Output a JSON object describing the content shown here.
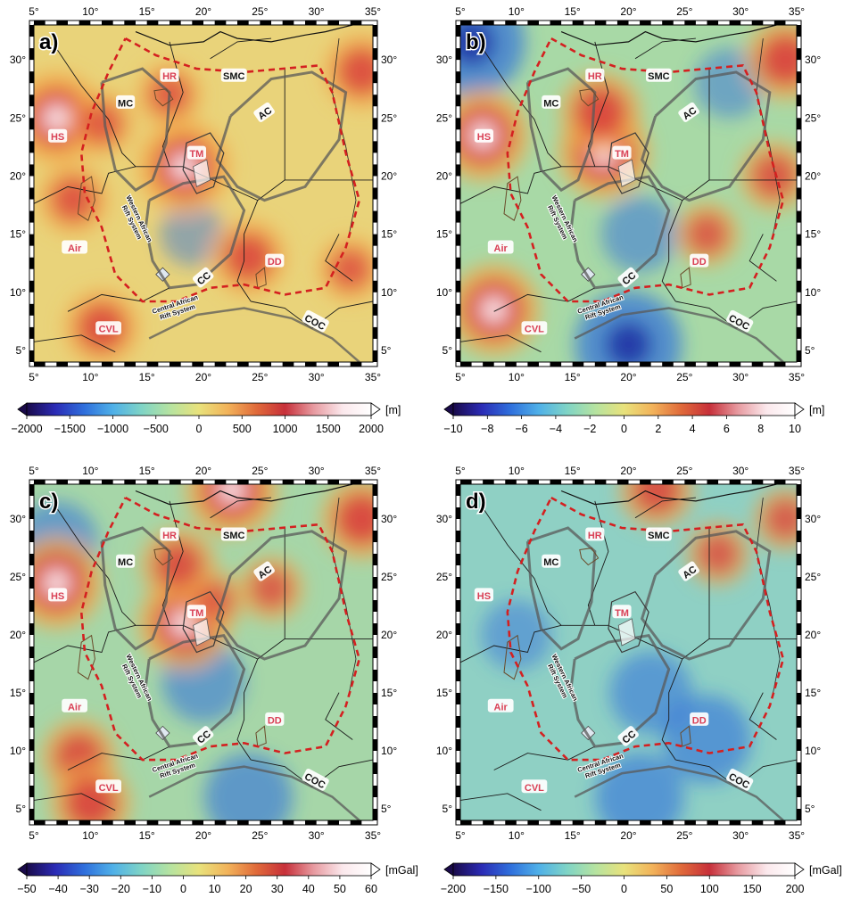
{
  "lon_ticks": [
    "5°",
    "10°",
    "15°",
    "20°",
    "25°",
    "30°",
    "35°"
  ],
  "lat_ticks": [
    "5°",
    "10°",
    "15°",
    "20°",
    "25°",
    "30°"
  ],
  "map_extent": {
    "lon": [
      5,
      35
    ],
    "lat": [
      4,
      33
    ]
  },
  "panels": [
    {
      "id": "a",
      "label": "a)",
      "unit": "[m]",
      "colorbar_ticks": [
        "−2000",
        "−1500",
        "−1000",
        "−500",
        "0",
        "500",
        "1000",
        "1500",
        "2000"
      ],
      "base_color": "#e9d37a",
      "highs": [
        {
          "lon": 7,
          "lat": 25,
          "strength": 1.0
        },
        {
          "lon": 18.3,
          "lat": 20.8,
          "strength": 1.0
        },
        {
          "lon": 11,
          "lat": 24.5,
          "strength": 0.5
        },
        {
          "lon": 8.5,
          "lat": 18,
          "strength": 0.6
        },
        {
          "lon": 17,
          "lat": 27,
          "strength": 0.5
        },
        {
          "lon": 24,
          "lat": 13,
          "strength": 0.7
        },
        {
          "lon": 11,
          "lat": 7,
          "strength": 0.7
        },
        {
          "lon": 34,
          "lat": 29,
          "strength": 0.7
        },
        {
          "lon": 33,
          "lat": 12,
          "strength": 0.5
        }
      ],
      "lows": [
        {
          "lon": 19,
          "lat": 15,
          "strength": 0.3
        }
      ]
    },
    {
      "id": "b",
      "label": "b)",
      "unit": "[m]",
      "colorbar_ticks": [
        "−10",
        "−8",
        "−6",
        "−4",
        "−2",
        "0",
        "2",
        "4",
        "6",
        "8",
        "10"
      ],
      "base_color": "#a8d9a6",
      "highs": [
        {
          "lon": 7,
          "lat": 23.5,
          "strength": 1.0
        },
        {
          "lon": 17.8,
          "lat": 22,
          "strength": 1.0
        },
        {
          "lon": 17.5,
          "lat": 25.5,
          "strength": 0.8
        },
        {
          "lon": 8,
          "lat": 8.5,
          "strength": 1.0
        },
        {
          "lon": 34,
          "lat": 30,
          "strength": 0.8
        },
        {
          "lon": 33,
          "lat": 20,
          "strength": 0.6
        },
        {
          "lon": 27,
          "lat": 15,
          "strength": 0.5
        }
      ],
      "lows": [
        {
          "lon": 6,
          "lat": 31.5,
          "strength": 1.0
        },
        {
          "lon": 20,
          "lat": 5.5,
          "strength": 1.0
        },
        {
          "lon": 21,
          "lat": 15,
          "strength": 0.5
        },
        {
          "lon": 29,
          "lat": 28,
          "strength": 0.4
        }
      ]
    },
    {
      "id": "c",
      "label": "c)",
      "unit": "[mGal]",
      "colorbar_ticks": [
        "−50",
        "−40",
        "−30",
        "−20",
        "−10",
        "0",
        "10",
        "20",
        "30",
        "40",
        "50",
        "60"
      ],
      "base_color": "#a6d6a8",
      "highs": [
        {
          "lon": 7,
          "lat": 24.5,
          "strength": 1.0
        },
        {
          "lon": 18.3,
          "lat": 21,
          "strength": 1.0
        },
        {
          "lon": 17.8,
          "lat": 26,
          "strength": 0.7
        },
        {
          "lon": 22.5,
          "lat": 32.5,
          "strength": 1.0
        },
        {
          "lon": 9,
          "lat": 9.5,
          "strength": 0.7
        },
        {
          "lon": 10,
          "lat": 5.5,
          "strength": 0.8
        },
        {
          "lon": 34,
          "lat": 30,
          "strength": 0.8
        },
        {
          "lon": 26,
          "lat": 24,
          "strength": 0.5
        },
        {
          "lon": 21,
          "lat": 23,
          "strength": 0.4
        }
      ],
      "lows": [
        {
          "lon": 7,
          "lat": 28,
          "strength": 0.6
        },
        {
          "lon": 20,
          "lat": 16,
          "strength": 0.6
        },
        {
          "lon": 24,
          "lat": 6,
          "strength": 0.7
        }
      ]
    },
    {
      "id": "d",
      "label": "d)",
      "unit": "[mGal]",
      "colorbar_ticks": [
        "−200",
        "−150",
        "−100",
        "−50",
        "0",
        "50",
        "100",
        "150",
        "200"
      ],
      "base_color": "#8fd0c4",
      "highs": [
        {
          "lon": 22.5,
          "lat": 32.5,
          "strength": 0.7
        },
        {
          "lon": 34,
          "lat": 30,
          "strength": 0.5
        },
        {
          "lon": 28,
          "lat": 27,
          "strength": 0.5
        }
      ],
      "lows": [
        {
          "lon": 22,
          "lat": 15,
          "strength": 0.6
        },
        {
          "lon": 27,
          "lat": 11,
          "strength": 0.7
        },
        {
          "lon": 21,
          "lat": 6,
          "strength": 0.7
        },
        {
          "lon": 10,
          "lat": 20,
          "strength": 0.4
        }
      ]
    }
  ],
  "annotations": {
    "HR": "HR",
    "SMC": "SMC",
    "MC": "MC",
    "AC": "AC",
    "HS": "HS",
    "TM": "TM",
    "Air": "Air",
    "CC": "CC",
    "DD": "DD",
    "CVL": "CVL",
    "COC": "COC",
    "wars_line1": "Western African",
    "wars_line2": "Rift System",
    "cars_line1": "Central African",
    "cars_line2": "Rift System"
  }
}
